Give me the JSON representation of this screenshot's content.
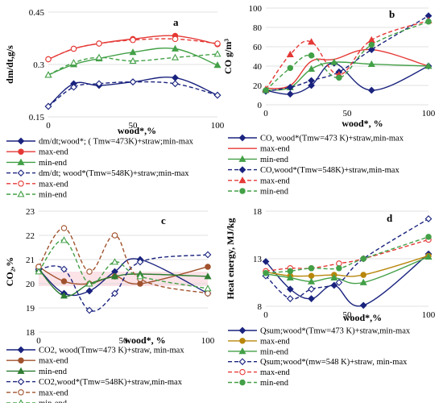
{
  "chart_data": [
    {
      "id": "a",
      "type": "line",
      "letter": "a",
      "ylabel": "dm/dt,g/s",
      "xlabel": "wood*,%",
      "x": [
        0,
        15,
        30,
        50,
        75,
        100
      ],
      "xlim": [
        0,
        100
      ],
      "ylim": [
        0.15,
        0.45
      ],
      "xticks": [
        "0",
        "50",
        "100"
      ],
      "yticks": [
        "0.15",
        "0.3",
        "0.45"
      ],
      "series": [
        {
          "name": "dm/dt;wood*; ( Tmw=473K)+straw;min-max",
          "color": "#1a237e",
          "dash": false,
          "marker": "diamond",
          "values": [
            0.18,
            0.245,
            0.24,
            0.25,
            0.262,
            0.212
          ]
        },
        {
          "name": "max-end",
          "color": "#e53935",
          "dash": false,
          "marker": "circle",
          "values": [
            0.315,
            0.345,
            0.36,
            0.373,
            0.382,
            0.358
          ]
        },
        {
          "name": "min-end",
          "color": "#43a047",
          "dash": false,
          "marker": "triangle",
          "values": [
            0.27,
            0.3,
            0.317,
            0.335,
            0.345,
            0.298
          ]
        },
        {
          "name": "dm/dt; wood*(Tmw=548K)+straw;min-max",
          "color": "#1a237e",
          "dash": true,
          "marker": "diamond-open",
          "values": [
            0.18,
            0.235,
            0.245,
            0.25,
            0.245,
            0.212
          ]
        },
        {
          "name": "max-end",
          "color": "#e53935",
          "dash": true,
          "marker": "circle-open",
          "values": [
            0.315,
            0.345,
            0.36,
            0.37,
            0.373,
            0.36
          ]
        },
        {
          "name": "min-end",
          "color": "#43a047",
          "dash": true,
          "marker": "triangle-open",
          "values": [
            0.27,
            0.305,
            0.32,
            0.31,
            0.32,
            0.33
          ]
        }
      ]
    },
    {
      "id": "b",
      "type": "line",
      "letter": "b",
      "ylabel": "CO g/m³",
      "xlabel": "wood*, %",
      "xlim": [
        0,
        100
      ],
      "ylim": [
        0,
        100
      ],
      "xticks": [
        "0",
        "50",
        "100"
      ],
      "yticks": [
        "0",
        "20",
        "40",
        "60",
        "80",
        "100"
      ],
      "series": [
        {
          "name": "CO, wood*(Tmw=473 K)+straw,min-max",
          "color": "#1a237e",
          "dash": false,
          "marker": "diamond",
          "x": [
            0,
            15,
            28,
            42,
            65,
            100
          ],
          "values": [
            15,
            11,
            20,
            43,
            15,
            40
          ]
        },
        {
          "name": "max-end",
          "color": "#e53935",
          "dash": false,
          "marker": "none",
          "x": [
            0,
            15,
            28,
            42,
            65,
            100
          ],
          "values": [
            17,
            20,
            45,
            47,
            57,
            40
          ]
        },
        {
          "name": "min-end",
          "color": "#43a047",
          "dash": false,
          "marker": "triangle",
          "x": [
            0,
            15,
            28,
            42,
            65,
            100
          ],
          "values": [
            15,
            18,
            37,
            44,
            42,
            40
          ]
        },
        {
          "name": "CO,wood*(Tmw=548K)+straw,min-max",
          "color": "#1a237e",
          "dash": true,
          "marker": "diamond",
          "x": [
            0,
            15,
            28,
            45,
            65,
            100
          ],
          "values": [
            14,
            18,
            25,
            34,
            57,
            92
          ]
        },
        {
          "name": "max-end",
          "color": "#e53935",
          "dash": true,
          "marker": "triangle",
          "x": [
            0,
            15,
            28,
            45,
            65,
            100
          ],
          "values": [
            16,
            52,
            65,
            31,
            67,
            87
          ]
        },
        {
          "name": "min-end",
          "color": "#43a047",
          "dash": true,
          "marker": "circle",
          "x": [
            0,
            15,
            28,
            45,
            65,
            100
          ],
          "values": [
            15,
            38,
            51,
            28,
            62,
            86
          ]
        }
      ]
    },
    {
      "id": "c",
      "type": "line",
      "letter": "c",
      "ylabel": "CO₂,%",
      "xlabel": "wood*, %",
      "xlim": [
        0,
        100
      ],
      "ylim": [
        18,
        23
      ],
      "xticks": [
        "0",
        "50",
        "100"
      ],
      "yticks": [
        "18",
        "19",
        "20",
        "21",
        "22",
        "23"
      ],
      "series": [
        {
          "name": "CO2, wood(Tmw=473 K)+straw, min-max",
          "color": "#1a237e",
          "dash": false,
          "marker": "diamond",
          "x": [
            0,
            15,
            30,
            45,
            60,
            100
          ],
          "values": [
            20.6,
            19.6,
            19.7,
            20.5,
            21.0,
            19.6
          ]
        },
        {
          "name": "max-end",
          "color": "#a0522d",
          "dash": false,
          "marker": "circle",
          "x": [
            0,
            15,
            30,
            45,
            60,
            100
          ],
          "values": [
            20.7,
            20.1,
            20.0,
            20.3,
            20.0,
            20.7
          ]
        },
        {
          "name": "min-end",
          "color": "#2e7d32",
          "dash": false,
          "marker": "triangle",
          "x": [
            0,
            15,
            30,
            45,
            60,
            100
          ],
          "values": [
            20.6,
            19.5,
            20.0,
            20.3,
            20.4,
            20.3
          ]
        },
        {
          "name": "CO2,wood*(Tmw=548K)+straw,min-max",
          "color": "#1a237e",
          "dash": true,
          "marker": "diamond-open",
          "x": [
            0,
            15,
            30,
            45,
            60,
            100
          ],
          "values": [
            20.6,
            20.6,
            18.9,
            19.6,
            20.9,
            21.2
          ]
        },
        {
          "name": "max-end",
          "color": "#a0522d",
          "dash": true,
          "marker": "circle-open",
          "x": [
            0,
            15,
            30,
            45,
            60,
            100
          ],
          "values": [
            20.7,
            22.3,
            20.5,
            22.0,
            20.2,
            19.6
          ]
        },
        {
          "name": "min-end",
          "color": "#43a047",
          "dash": true,
          "marker": "triangle-open",
          "x": [
            0,
            15,
            30,
            45,
            60,
            100
          ],
          "values": [
            20.5,
            21.8,
            20.0,
            20.9,
            20.3,
            19.8
          ]
        }
      ]
    },
    {
      "id": "d",
      "type": "line",
      "letter": "d",
      "ylabel": "Heat energy, MJ/kg",
      "xlabel": "wood*,%",
      "xlim": [
        0,
        100
      ],
      "ylim": [
        8,
        18
      ],
      "xticks": [
        "0",
        "50",
        "100"
      ],
      "yticks": [
        "8",
        "13",
        "18"
      ],
      "series": [
        {
          "name": "Qsum;wood*(Tmw=473 K)+straw,min-max",
          "color": "#1a237e",
          "dash": false,
          "marker": "diamond",
          "x": [
            0,
            15,
            28,
            42,
            60,
            100
          ],
          "values": [
            12.7,
            9.8,
            8.8,
            10.2,
            8.1,
            13.5
          ]
        },
        {
          "name": "max-end",
          "color": "#b8860b",
          "dash": false,
          "marker": "circle",
          "x": [
            0,
            15,
            28,
            42,
            60,
            100
          ],
          "values": [
            11.6,
            11.2,
            11.2,
            11.3,
            11.3,
            13.3
          ]
        },
        {
          "name": "min-end",
          "color": "#43a047",
          "dash": false,
          "marker": "triangle",
          "x": [
            0,
            15,
            28,
            42,
            60,
            100
          ],
          "values": [
            11.4,
            11.0,
            10.6,
            11.0,
            10.5,
            13.2
          ]
        },
        {
          "name": "Qsum;wood*(mw=548 K)+straw, min-max",
          "color": "#1a237e",
          "dash": true,
          "marker": "diamond-open",
          "x": [
            0,
            15,
            28,
            45,
            60,
            100
          ],
          "values": [
            11.2,
            8.8,
            9.8,
            10.5,
            13.0,
            17.2
          ]
        },
        {
          "name": "max-end",
          "color": "#e53935",
          "dash": true,
          "marker": "circle-open",
          "x": [
            0,
            15,
            28,
            45,
            60,
            100
          ],
          "values": [
            11.7,
            12.0,
            12.0,
            12.5,
            13.0,
            15.0
          ]
        },
        {
          "name": "min-end",
          "color": "#43a047",
          "dash": true,
          "marker": "circle",
          "x": [
            0,
            15,
            28,
            45,
            60,
            100
          ],
          "values": [
            11.5,
            11.7,
            12.0,
            12.0,
            13.0,
            15.3
          ]
        }
      ]
    }
  ]
}
